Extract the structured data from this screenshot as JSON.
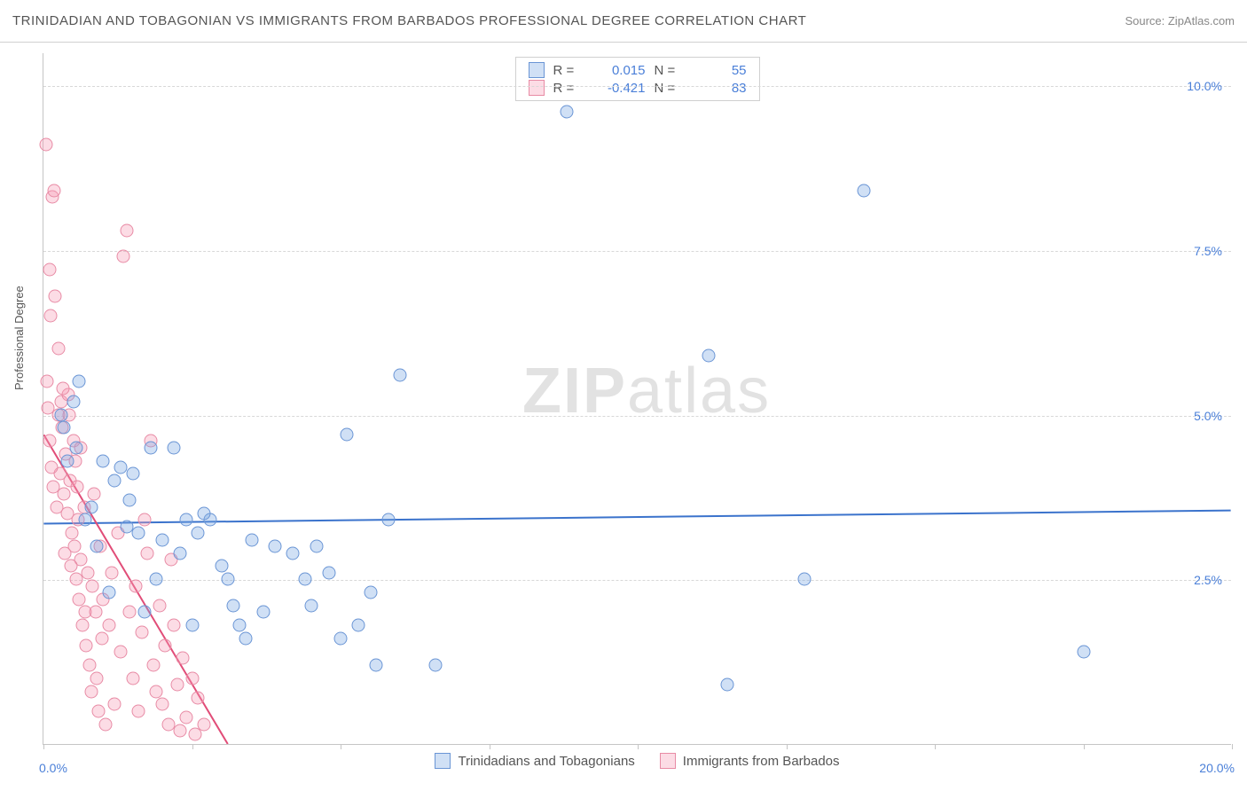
{
  "title": "TRINIDADIAN AND TOBAGONIAN VS IMMIGRANTS FROM BARBADOS PROFESSIONAL DEGREE CORRELATION CHART",
  "source": "Source: ZipAtlas.com",
  "y_axis_label": "Professional Degree",
  "watermark_bold": "ZIP",
  "watermark_light": "atlas",
  "chart": {
    "xlim": [
      0,
      20
    ],
    "ylim": [
      0,
      10.5
    ],
    "x_ticks": [
      0,
      2.5,
      5,
      7.5,
      10,
      12.5,
      15,
      17.5,
      20
    ],
    "x_tick_labels_shown": {
      "0": "0.0%",
      "20": "20.0%"
    },
    "y_gridlines": [
      2.5,
      5.0,
      7.5,
      10.0
    ],
    "y_tick_labels": {
      "2.5": "2.5%",
      "5.0": "5.0%",
      "7.5": "7.5%",
      "10.0": "10.0%"
    },
    "grid_color": "#d8d8d8",
    "axis_color": "#c5c5c5",
    "label_color_blue": "#4a7fd8",
    "background": "#ffffff"
  },
  "series": [
    {
      "name": "Trinidadians and Tobagonians",
      "fill": "rgba(120,165,225,0.35)",
      "stroke": "#6a95d5",
      "marker_size": 15,
      "R": "0.015",
      "N": "55",
      "trend": {
        "x1": 0,
        "y1": 3.35,
        "x2": 20,
        "y2": 3.55,
        "color": "#3b73cc",
        "width": 2
      },
      "points": [
        [
          0.3,
          5.0
        ],
        [
          0.4,
          4.3
        ],
        [
          0.5,
          5.2
        ],
        [
          0.6,
          5.5
        ],
        [
          0.8,
          3.6
        ],
        [
          0.9,
          3.0
        ],
        [
          1.0,
          4.3
        ],
        [
          1.1,
          2.3
        ],
        [
          1.3,
          4.2
        ],
        [
          1.4,
          3.3
        ],
        [
          1.5,
          4.1
        ],
        [
          1.6,
          3.2
        ],
        [
          1.7,
          2.0
        ],
        [
          1.8,
          4.5
        ],
        [
          2.0,
          3.1
        ],
        [
          2.2,
          4.5
        ],
        [
          2.3,
          2.9
        ],
        [
          2.5,
          1.8
        ],
        [
          2.6,
          3.2
        ],
        [
          2.8,
          3.4
        ],
        [
          3.0,
          2.7
        ],
        [
          3.2,
          2.1
        ],
        [
          3.3,
          1.8
        ],
        [
          3.5,
          3.1
        ],
        [
          3.7,
          2.0
        ],
        [
          3.9,
          3.0
        ],
        [
          4.2,
          2.9
        ],
        [
          4.5,
          2.1
        ],
        [
          4.6,
          3.0
        ],
        [
          4.8,
          2.6
        ],
        [
          5.0,
          1.6
        ],
        [
          5.1,
          4.7
        ],
        [
          5.3,
          1.8
        ],
        [
          5.5,
          2.3
        ],
        [
          5.6,
          1.2
        ],
        [
          5.8,
          3.4
        ],
        [
          6.0,
          5.6
        ],
        [
          6.6,
          1.2
        ],
        [
          8.8,
          9.6
        ],
        [
          11.2,
          5.9
        ],
        [
          11.5,
          0.9
        ],
        [
          12.8,
          2.5
        ],
        [
          13.8,
          8.4
        ],
        [
          17.5,
          1.4
        ],
        [
          0.35,
          4.8
        ],
        [
          0.55,
          4.5
        ],
        [
          0.7,
          3.4
        ],
        [
          1.2,
          4.0
        ],
        [
          1.45,
          3.7
        ],
        [
          1.9,
          2.5
        ],
        [
          2.4,
          3.4
        ],
        [
          2.7,
          3.5
        ],
        [
          3.1,
          2.5
        ],
        [
          3.4,
          1.6
        ],
        [
          4.4,
          2.5
        ]
      ]
    },
    {
      "name": "Immigrants from Barbados",
      "fill": "rgba(245,155,180,0.35)",
      "stroke": "#e88ba5",
      "marker_size": 15,
      "R": "-0.421",
      "N": "83",
      "trend": {
        "x1": 0,
        "y1": 4.7,
        "x2": 3.1,
        "y2": 0,
        "color": "#e14d78",
        "width": 2
      },
      "points": [
        [
          0.05,
          9.1
        ],
        [
          0.1,
          7.2
        ],
        [
          0.12,
          6.5
        ],
        [
          0.15,
          8.3
        ],
        [
          0.18,
          8.4
        ],
        [
          0.2,
          6.8
        ],
        [
          0.25,
          5.0
        ],
        [
          0.28,
          4.1
        ],
        [
          0.3,
          5.2
        ],
        [
          0.32,
          4.8
        ],
        [
          0.35,
          3.8
        ],
        [
          0.38,
          4.4
        ],
        [
          0.4,
          3.5
        ],
        [
          0.42,
          5.3
        ],
        [
          0.45,
          4.0
        ],
        [
          0.48,
          3.2
        ],
        [
          0.5,
          4.6
        ],
        [
          0.52,
          3.0
        ],
        [
          0.55,
          2.5
        ],
        [
          0.58,
          3.4
        ],
        [
          0.6,
          2.2
        ],
        [
          0.62,
          2.8
        ],
        [
          0.65,
          1.8
        ],
        [
          0.68,
          3.6
        ],
        [
          0.7,
          2.0
        ],
        [
          0.72,
          1.5
        ],
        [
          0.75,
          2.6
        ],
        [
          0.78,
          1.2
        ],
        [
          0.8,
          0.8
        ],
        [
          0.82,
          2.4
        ],
        [
          0.85,
          3.8
        ],
        [
          0.88,
          2.0
        ],
        [
          0.9,
          1.0
        ],
        [
          0.92,
          0.5
        ],
        [
          0.95,
          3.0
        ],
        [
          0.98,
          1.6
        ],
        [
          1.0,
          2.2
        ],
        [
          1.05,
          0.3
        ],
        [
          1.1,
          1.8
        ],
        [
          1.15,
          2.6
        ],
        [
          1.2,
          0.6
        ],
        [
          1.25,
          3.2
        ],
        [
          1.3,
          1.4
        ],
        [
          1.35,
          7.4
        ],
        [
          1.4,
          7.8
        ],
        [
          1.45,
          2.0
        ],
        [
          1.5,
          1.0
        ],
        [
          1.55,
          2.4
        ],
        [
          1.6,
          0.5
        ],
        [
          1.65,
          1.7
        ],
        [
          1.7,
          3.4
        ],
        [
          1.75,
          2.9
        ],
        [
          1.8,
          4.6
        ],
        [
          1.85,
          1.2
        ],
        [
          1.9,
          0.8
        ],
        [
          1.95,
          2.1
        ],
        [
          2.0,
          0.6
        ],
        [
          2.05,
          1.5
        ],
        [
          2.1,
          0.3
        ],
        [
          2.15,
          2.8
        ],
        [
          2.2,
          1.8
        ],
        [
          2.25,
          0.9
        ],
        [
          2.3,
          0.2
        ],
        [
          2.35,
          1.3
        ],
        [
          2.4,
          0.4
        ],
        [
          2.5,
          1.0
        ],
        [
          2.55,
          0.15
        ],
        [
          2.6,
          0.7
        ],
        [
          2.7,
          0.3
        ],
        [
          0.06,
          5.5
        ],
        [
          0.08,
          5.1
        ],
        [
          0.11,
          4.6
        ],
        [
          0.14,
          4.2
        ],
        [
          0.17,
          3.9
        ],
        [
          0.22,
          3.6
        ],
        [
          0.26,
          6.0
        ],
        [
          0.33,
          5.4
        ],
        [
          0.36,
          2.9
        ],
        [
          0.44,
          5.0
        ],
        [
          0.47,
          2.7
        ],
        [
          0.53,
          4.3
        ],
        [
          0.57,
          3.9
        ],
        [
          0.63,
          4.5
        ]
      ]
    }
  ],
  "legend_top_labels": {
    "R": "R  =",
    "N": "N  ="
  },
  "legend_bottom": {
    "s1_label": "Trinidadians and Tobagonians",
    "s2_label": "Immigrants from Barbados"
  }
}
